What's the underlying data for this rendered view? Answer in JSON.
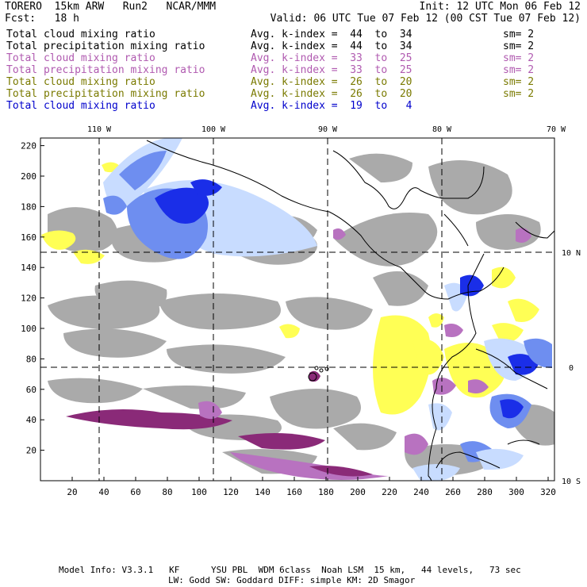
{
  "header": {
    "model": "TORERO  15km ARW   Run2   NCAR/MMM",
    "init": "Init: 12 UTC Mon 06 Feb 12",
    "fcst": "Fcst:   18 h",
    "valid": "Valid: 06 UTC Tue 07 Feb 12 (00 CST Tue 07 Feb 12)"
  },
  "legend": [
    {
      "field": "Total cloud mixing ratio",
      "kidx": "Avg. k-index =  44  to  34",
      "sm": "sm= 2",
      "color": "#000000"
    },
    {
      "field": "Total precipitation mixing ratio",
      "kidx": "Avg. k-index =  44  to  34",
      "sm": "sm= 2",
      "color": "#000000"
    },
    {
      "field": "Total cloud mixing ratio",
      "kidx": "Avg. k-index =  33  to  25",
      "sm": "sm= 2",
      "color": "#b05ab0"
    },
    {
      "field": "Total precipitation mixing ratio",
      "kidx": "Avg. k-index =  33  to  25",
      "sm": "sm= 2",
      "color": "#b05ab0"
    },
    {
      "field": "Total cloud mixing ratio",
      "kidx": "Avg. k-index =  26  to  20",
      "sm": "sm= 2",
      "color": "#7a7a00"
    },
    {
      "field": "Total precipitation mixing ratio",
      "kidx": "Avg. k-index =  26  to  20",
      "sm": "sm= 2",
      "color": "#7a7a00"
    },
    {
      "field": "Total cloud mixing ratio",
      "kidx": "Avg. k-index =  19  to   4",
      "sm": "",
      "color": "#0000cc"
    }
  ],
  "axes": {
    "lon_labels": [
      "110 W",
      "100 W",
      "90 W",
      "80 W",
      "70 W"
    ],
    "lat_labels": [
      "10 N",
      "0",
      "10 S"
    ],
    "x_ticks": [
      "20",
      "40",
      "60",
      "80",
      "100",
      "120",
      "140",
      "160",
      "180",
      "200",
      "220",
      "240",
      "260",
      "280",
      "300",
      "320"
    ],
    "y_ticks": [
      "220",
      "200",
      "180",
      "160",
      "140",
      "120",
      "100",
      "80",
      "60",
      "40",
      "20"
    ]
  },
  "colors": {
    "gray": "#aaaaaa",
    "yellow": "#ffff55",
    "purple_light": "#b872c0",
    "purple_dark": "#8a2a78",
    "blue_light": "#c8dcff",
    "blue_mid": "#6e8ef0",
    "blue_dark": "#1a2ee8"
  },
  "footer": {
    "line1": "Model Info: V3.3.1   KF      YSU PBL  WDM 6class  Noah LSM  15 km,   44 levels,   73 sec",
    "line2": "LW: Godd SW: Goddard DIFF: simple KM: 2D Smagor"
  }
}
